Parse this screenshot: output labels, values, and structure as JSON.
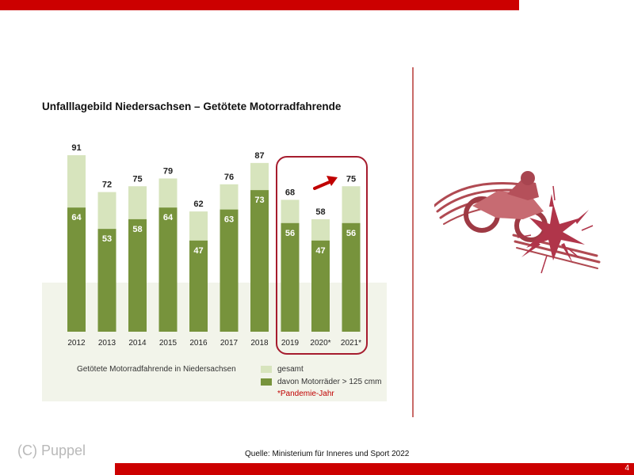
{
  "slide": {
    "title": "Unfalllagebild Niedersachsen – Getötete Motorradfahrende",
    "subtitle_note": "Getötete Motorradfahrende in Niedersachsen",
    "legend": {
      "gesamt": "gesamt",
      "motorraeder": "davon Motorräder > 125 cmm",
      "pandemie": "*Pandemie-Jahr"
    },
    "source": "Quelle:  Ministerium für Inneres und Sport 2022",
    "copyright": "(C) Puppel",
    "page_number": "4"
  },
  "colors": {
    "gesamt": "#d7e4bd",
    "motorraeder": "#77933c",
    "accent_red": "#cc0000",
    "highlight": "#a61c2e"
  },
  "chart_data": {
    "type": "bar",
    "title": "Unfalllagebild Niedersachsen – Getötete Motorradfahrende",
    "categories": [
      "2012",
      "2013",
      "2014",
      "2015",
      "2016",
      "2017",
      "2018",
      "2019",
      "2020*",
      "2021*"
    ],
    "series": [
      {
        "name": "gesamt",
        "values": [
          91,
          72,
          75,
          79,
          62,
          76,
          87,
          68,
          58,
          75
        ]
      },
      {
        "name": "davon Motorräder > 125 cmm",
        "values": [
          64,
          53,
          58,
          64,
          47,
          63,
          73,
          56,
          47,
          56
        ]
      }
    ],
    "ylim": [
      0,
      100
    ],
    "grid": false,
    "legend_position": "bottom",
    "annotations": [
      "*Pandemie-Jahr"
    ]
  }
}
